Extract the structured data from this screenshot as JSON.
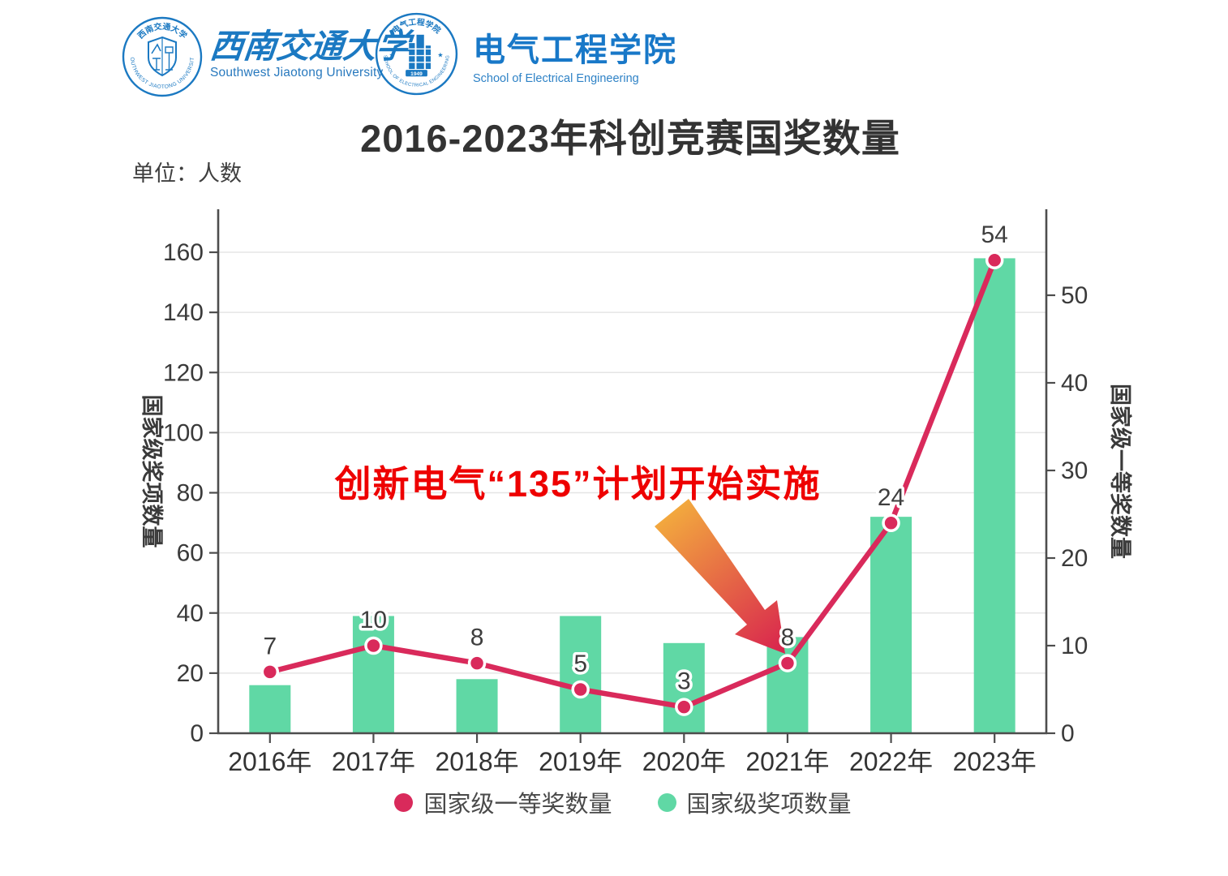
{
  "header": {
    "university": {
      "seal_top_text": "西南交通大学",
      "seal_ring_text": "SOUTHWEST JIAOTONG UNIVERSITY",
      "name_zh": "西南交通大学",
      "name_en": "Southwest Jiaotong University",
      "brand_color": "#1B79C2"
    },
    "school": {
      "seal_top_text": "电气工程学院",
      "seal_ring_text": "SCHOOL OF ELECTRICAL ENGINEERING",
      "seal_year": "1949",
      "name_zh": "电气工程学院",
      "name_en": "School of Electrical Engineering",
      "brand_color": "#1878C8"
    }
  },
  "chart_data": {
    "type": "bar",
    "title": "2016-2023年科创竞赛国奖数量",
    "unit_label": "单位：人数",
    "categories": [
      "2016年",
      "2017年",
      "2018年",
      "2019年",
      "2020年",
      "2021年",
      "2022年",
      "2023年"
    ],
    "series": [
      {
        "name": "国家级奖项数量",
        "type": "bar",
        "axis": "left",
        "color": "#60D8A5",
        "values": [
          16,
          39,
          18,
          39,
          30,
          32,
          72,
          158
        ]
      },
      {
        "name": "国家级一等奖数量",
        "type": "line",
        "axis": "right",
        "color": "#D92A5B",
        "values": [
          7,
          10,
          8,
          5,
          3,
          8,
          24,
          54
        ],
        "point_labels": [
          "7",
          "10",
          "8",
          "5",
          "3",
          "8",
          "24",
          "54"
        ]
      }
    ],
    "left_axis": {
      "name": "国家级奖项数量",
      "min": 0,
      "max": 160,
      "step": 20
    },
    "right_axis": {
      "name": "国家级一等奖数量",
      "min": 0,
      "max": 50,
      "step": 10
    },
    "grid": true,
    "legend": [
      "国家级一等奖数量",
      "国家级奖项数量"
    ],
    "legend_position": "bottom",
    "annotation": {
      "text": "创新电气“135”计划开始实施",
      "color": "#EE0000",
      "arrow_colors": [
        "#F2A83E",
        "#D8224E"
      ],
      "points_to": "2021年"
    }
  }
}
